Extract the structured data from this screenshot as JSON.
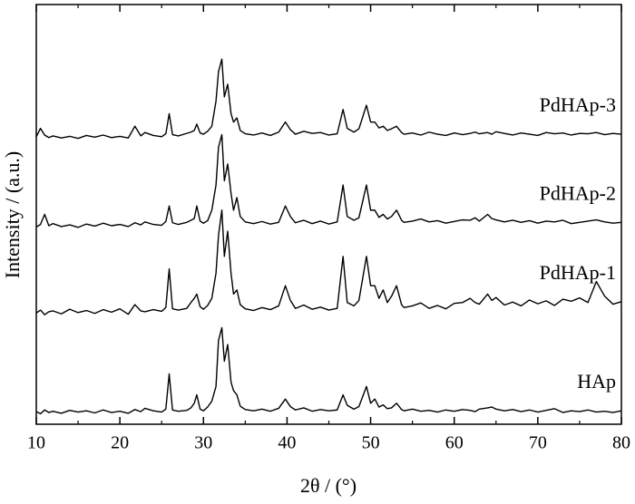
{
  "chart_data": {
    "type": "line",
    "x_label": "2θ / (°)",
    "y_label": "Intensity / (a.u.)",
    "xlim": [
      10,
      80
    ],
    "xticks": [
      10,
      20,
      30,
      40,
      50,
      60,
      70,
      80
    ],
    "ylim": [
      0,
      100
    ],
    "x": [
      10,
      10.5,
      11,
      11.5,
      12,
      13,
      14,
      15,
      16,
      17,
      18,
      19,
      20,
      21,
      21.8,
      22.5,
      23,
      24,
      25,
      25.5,
      25.9,
      26.3,
      27,
      28,
      28.5,
      28.9,
      29.2,
      29.6,
      30,
      30.5,
      31,
      31.5,
      31.8,
      32.2,
      32.5,
      32.9,
      33.3,
      33.6,
      34.0,
      34.4,
      35,
      36,
      37,
      38,
      39,
      39.8,
      40.4,
      41,
      42,
      43,
      44,
      45,
      46,
      46.7,
      47.2,
      48,
      48.6,
      49.5,
      50,
      50.5,
      51,
      51.5,
      52,
      52.5,
      53.1,
      53.7,
      54,
      55,
      56,
      57,
      58,
      59,
      60,
      61,
      61.9,
      62.5,
      63,
      64,
      64.5,
      65,
      66,
      67,
      68,
      69,
      70,
      71,
      72,
      73,
      74,
      75,
      76,
      77,
      78,
      79,
      80
    ],
    "series": [
      {
        "name": "HAp",
        "color": "#000000",
        "values": [
          3,
          2.5,
          3.4,
          2.8,
          3.1,
          2.6,
          3.3,
          2.9,
          3.2,
          2.7,
          3.4,
          2.8,
          3.1,
          2.6,
          3.5,
          3.0,
          3.8,
          3.2,
          2.9,
          3.6,
          12,
          3.4,
          3.1,
          3.3,
          3.9,
          5,
          7,
          3.6,
          3.2,
          4.1,
          5.5,
          9,
          20,
          23,
          15,
          19,
          10,
          8,
          7,
          4.3,
          3.5,
          3.2,
          3.6,
          3.1,
          3.8,
          6,
          4.2,
          3.4,
          3.9,
          3.1,
          3.5,
          3.2,
          3.4,
          7,
          4.5,
          3.6,
          4.2,
          9,
          5,
          6,
          4.1,
          4.6,
          3.7,
          3.9,
          5,
          3.5,
          3.2,
          3.6,
          3.1,
          3.3,
          2.9,
          3.4,
          3.1,
          3.5,
          3.3,
          3.0,
          3.6,
          3.9,
          4.1,
          3.6,
          3.2,
          3.5,
          3.0,
          3.4,
          2.9,
          3.3,
          3.7,
          2.8,
          3.2,
          3.0,
          3.4,
          2.9,
          3.1,
          2.8,
          3.2
        ]
      },
      {
        "name": "PdHAp-1",
        "color": "#000000",
        "values": [
          26.5,
          27.2,
          26.1,
          26.8,
          27,
          26.3,
          27.4,
          26.6,
          27.1,
          26.4,
          27.3,
          26.7,
          27.5,
          26.2,
          28.5,
          27,
          26.8,
          27.3,
          26.9,
          27.8,
          37,
          27.5,
          27.2,
          27.6,
          29,
          30,
          31,
          28,
          27.4,
          28.3,
          30,
          36,
          45,
          51,
          40,
          46,
          36,
          31,
          32,
          28.5,
          27.5,
          27.1,
          27.8,
          27.3,
          28.2,
          33,
          29.5,
          27.6,
          28.4,
          27.4,
          27.9,
          27.2,
          27.6,
          40,
          29,
          28.2,
          29.5,
          40,
          33,
          33,
          30,
          32,
          29,
          30.5,
          33,
          28.5,
          27.8,
          28.2,
          28.9,
          27.6,
          28.3,
          27.5,
          28.8,
          29,
          30,
          29,
          28.6,
          31,
          29.5,
          30.2,
          28.4,
          29.1,
          28.2,
          29.6,
          28.7,
          29.4,
          28.3,
          29.8,
          29.3,
          30.1,
          29,
          34,
          30.5,
          28.6,
          29.2
        ]
      },
      {
        "name": "PdHAp-2",
        "color": "#000000",
        "values": [
          47,
          47.6,
          50,
          47.3,
          47.8,
          47.1,
          47.5,
          46.9,
          47.7,
          47.2,
          47.9,
          47.3,
          47.6,
          47.1,
          48,
          47.5,
          48.2,
          47.6,
          47.4,
          48.3,
          52,
          48,
          47.6,
          48.1,
          48.6,
          49,
          52,
          48.4,
          47.9,
          48.5,
          51,
          57,
          66,
          69,
          58,
          62,
          55,
          51,
          54,
          49.5,
          48.2,
          47.8,
          48.3,
          47.7,
          48.1,
          52,
          49.5,
          48,
          48.6,
          47.8,
          48.4,
          47.7,
          48.2,
          57,
          49.5,
          48.6,
          49.2,
          57,
          51,
          51,
          49.3,
          50,
          48.9,
          49.5,
          51,
          48.6,
          48.1,
          48.4,
          48.9,
          48.2,
          48.5,
          47.9,
          48.3,
          48.7,
          48.6,
          49.2,
          48.4,
          50,
          49,
          48.7,
          48.2,
          48.6,
          48.1,
          48.5,
          47.9,
          48.4,
          48.2,
          48.6,
          47.8,
          48.1,
          48.4,
          48.7,
          48.2,
          47.9,
          48.1
        ]
      },
      {
        "name": "PdHAp-3",
        "color": "#000000",
        "values": [
          68.5,
          70.5,
          68.9,
          68.3,
          68.7,
          68.2,
          68.6,
          68.1,
          68.8,
          68.4,
          68.9,
          68.3,
          68.6,
          68.2,
          71,
          68.7,
          69.5,
          68.8,
          68.5,
          69.2,
          74,
          69,
          68.7,
          69.3,
          69.6,
          70,
          71.5,
          69.4,
          69.1,
          69.8,
          71,
          77,
          84,
          87,
          78,
          81,
          74,
          72,
          73,
          70,
          69.2,
          68.9,
          69.4,
          68.8,
          69.6,
          72,
          70.2,
          69.1,
          69.8,
          69.3,
          69.5,
          68.9,
          69.2,
          75,
          70.5,
          69.6,
          70.4,
          76,
          72,
          72,
          70.6,
          71,
          70,
          70.4,
          71,
          69.5,
          69.1,
          69.4,
          68.9,
          69.6,
          69.1,
          68.8,
          69.4,
          69,
          69.3,
          69.6,
          69.2,
          69.5,
          69.1,
          69.7,
          69.3,
          68.9,
          69.4,
          69.1,
          68.8,
          69.5,
          69.2,
          69.4,
          68.9,
          69.3,
          69.2,
          69.5,
          69,
          69.3,
          69.1
        ]
      }
    ]
  }
}
